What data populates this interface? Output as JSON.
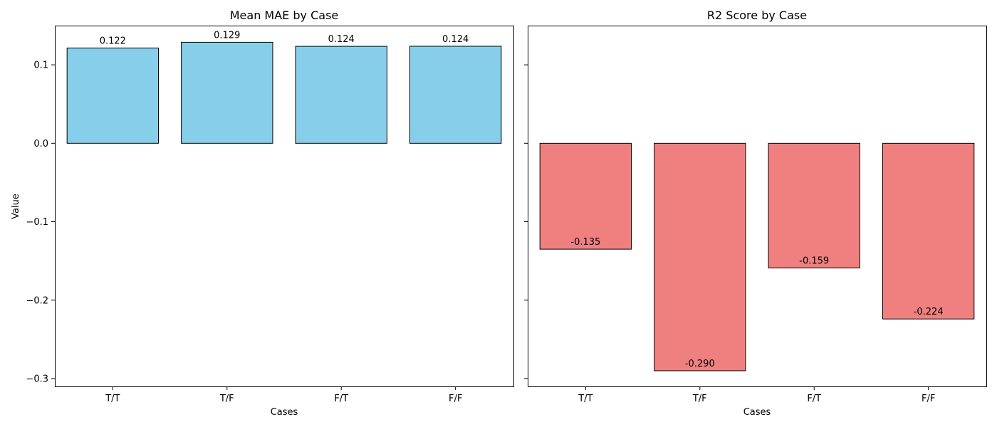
{
  "chart_data": [
    {
      "type": "bar",
      "title": "Mean MAE by Case",
      "xlabel": "Cases",
      "ylabel": "Value",
      "categories": [
        "T/T",
        "T/F",
        "F/T",
        "F/F"
      ],
      "values": [
        0.1215,
        0.1288,
        0.1236,
        0.1237
      ],
      "value_labels": [
        "0.122",
        "0.129",
        "0.124",
        "0.124"
      ],
      "ylim": [
        -0.31,
        0.15
      ],
      "yticks": [
        0.1,
        0.0,
        -0.1,
        -0.2,
        -0.3
      ],
      "ytick_labels": [
        "0.1",
        "0.0",
        "−0.1",
        "−0.2",
        "−0.3"
      ],
      "show_ytick_labels": true,
      "bar_color": "#87ceeb",
      "edge_color": "#000000",
      "grid": false,
      "legend": false
    },
    {
      "type": "bar",
      "title": "R2 Score by Case",
      "xlabel": "Cases",
      "ylabel": "",
      "categories": [
        "T/T",
        "T/F",
        "F/T",
        "F/F"
      ],
      "values": [
        -0.135,
        -0.29,
        -0.159,
        -0.224
      ],
      "value_labels": [
        "-0.135",
        "-0.290",
        "-0.159",
        "-0.224"
      ],
      "ylim": [
        -0.31,
        0.15
      ],
      "yticks": [
        0.1,
        0.0,
        -0.1,
        -0.2,
        -0.3
      ],
      "ytick_labels": [
        "",
        "",
        "",
        "",
        ""
      ],
      "show_ytick_labels": false,
      "bar_color": "#f08080",
      "edge_color": "#000000",
      "grid": false,
      "legend": false
    }
  ]
}
